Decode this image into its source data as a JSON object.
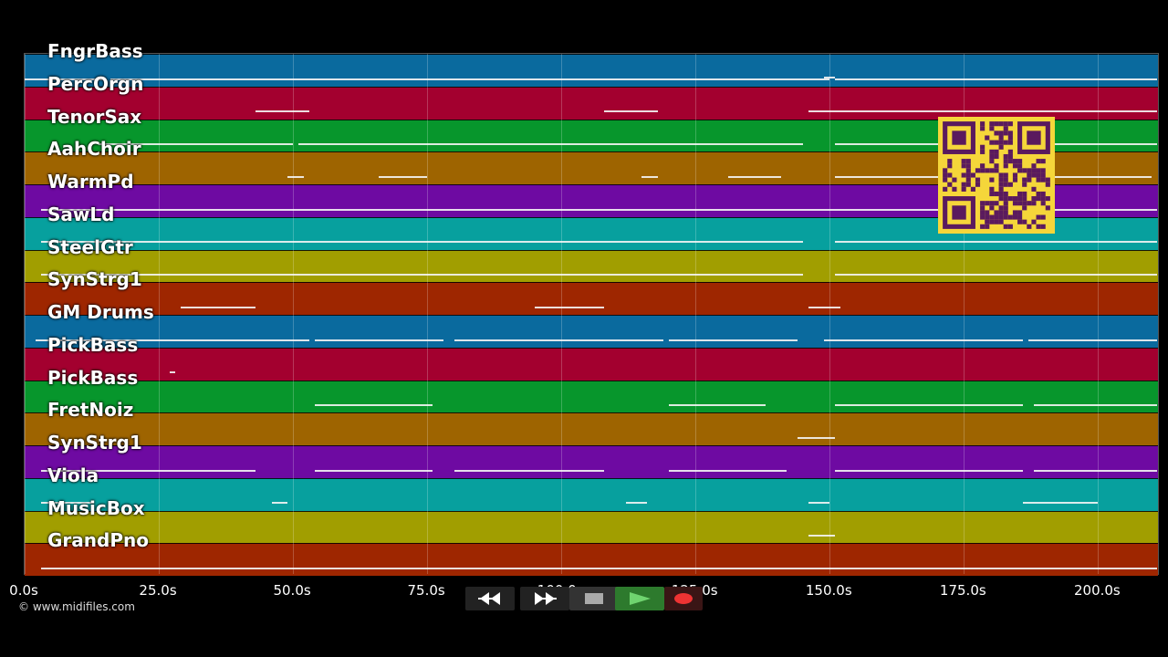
{
  "tracks": [
    {
      "label": "FngrBass",
      "color": "#0a6a9e"
    },
    {
      "label": "PercOrgn",
      "color": "#a3002f"
    },
    {
      "label": "TenorSax",
      "color": "#07962c"
    },
    {
      "label": "AahChoir",
      "color": "#9e6400"
    },
    {
      "label": "WarmPd",
      "color": "#6e0aa2"
    },
    {
      "label": "SawLd",
      "color": "#07a09e"
    },
    {
      "label": "SteelGtr",
      "color": "#a19e00"
    },
    {
      "label": "SynStrg1",
      "color": "#9e2600"
    },
    {
      "label": "GM Drums",
      "color": "#0a6a9e"
    },
    {
      "label": "PickBass",
      "color": "#a3002f"
    },
    {
      "label": "PickBass",
      "color": "#07962c"
    },
    {
      "label": "FretNoiz",
      "color": "#9e6400"
    },
    {
      "label": "SynStrg1",
      "color": "#6e0aa2"
    },
    {
      "label": "Viola",
      "color": "#07a09e"
    },
    {
      "label": "MusicBox",
      "color": "#a19e00"
    },
    {
      "label": "GrandPno",
      "color": "#9e2600"
    }
  ],
  "axis": {
    "ticks": [
      "0.0s",
      "25.0s",
      "50.0s",
      "75.0s",
      "100.0s",
      "125.0s",
      "150.0s",
      "175.0s",
      "200.0s"
    ],
    "max_seconds": 211.5
  },
  "copyright": "© www.midifiles.com",
  "transport": {
    "rewind_icon": "rewind-icon",
    "fastforward_icon": "fast-forward-icon",
    "stop_icon": "stop-icon",
    "play_icon": "play-icon",
    "record_icon": "record-icon"
  },
  "notes": [
    [
      [
        0,
        15,
        0
      ],
      [
        16,
        150,
        0
      ],
      [
        149,
        151,
        -2
      ],
      [
        151,
        211,
        0
      ]
    ],
    [
      [
        43,
        53,
        0
      ],
      [
        108,
        118,
        0
      ],
      [
        146,
        152,
        0
      ],
      [
        152,
        211,
        0
      ]
    ],
    [
      [
        14,
        50,
        0
      ],
      [
        51,
        145,
        0
      ],
      [
        151,
        211,
        0
      ]
    ],
    [
      [
        49,
        52,
        0
      ],
      [
        66,
        75,
        0
      ],
      [
        115,
        118,
        0
      ],
      [
        131,
        141,
        0
      ],
      [
        151,
        175,
        0
      ],
      [
        175,
        210,
        0
      ]
    ],
    [
      [
        3,
        56,
        0
      ],
      [
        56,
        120,
        0
      ],
      [
        120,
        211,
        0
      ]
    ],
    [
      [
        3,
        55,
        0
      ],
      [
        55,
        145,
        0
      ],
      [
        151,
        211,
        0
      ]
    ],
    [
      [
        3,
        55,
        0
      ],
      [
        55,
        145,
        0
      ],
      [
        151,
        211,
        0
      ]
    ],
    [
      [
        29,
        43,
        0
      ],
      [
        95,
        108,
        0
      ],
      [
        146,
        152,
        0
      ]
    ],
    [
      [
        2,
        53,
        0
      ],
      [
        54,
        78,
        0
      ],
      [
        80,
        119,
        0
      ],
      [
        120,
        144,
        0
      ],
      [
        149,
        186,
        0
      ],
      [
        187,
        211,
        0
      ]
    ],
    [
      [
        27,
        28,
        0
      ]
    ],
    [
      [
        54,
        76,
        0
      ],
      [
        120,
        138,
        0
      ],
      [
        151,
        186,
        0
      ],
      [
        188,
        211,
        0
      ]
    ],
    [
      [
        144,
        151,
        0
      ]
    ],
    [
      [
        3,
        43,
        0
      ],
      [
        54,
        76,
        0
      ],
      [
        80,
        108,
        0
      ],
      [
        120,
        142,
        0
      ],
      [
        151,
        186,
        0
      ],
      [
        188,
        211,
        0
      ]
    ],
    [
      [
        3,
        13,
        0
      ],
      [
        46,
        49,
        0
      ],
      [
        112,
        116,
        0
      ],
      [
        146,
        150,
        0
      ],
      [
        186,
        200,
        0
      ]
    ],
    [
      [
        146,
        151,
        0
      ]
    ],
    [
      [
        3,
        211,
        0
      ]
    ]
  ]
}
